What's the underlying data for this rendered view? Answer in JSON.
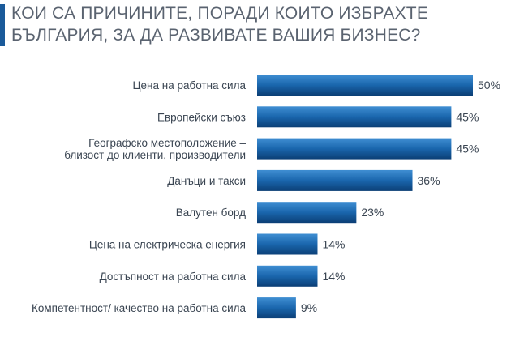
{
  "title": {
    "line1": "КОИ СА ПРИЧИНИТЕ, ПОРАДИ КОИТО ИЗБРАХТЕ",
    "line2": "БЪЛГАРИЯ, ЗА ДА РАЗВИВАТЕ ВАШИЯ БИЗНЕС?"
  },
  "colors": {
    "title_text": "#5a6370",
    "accent": "#1a5a9a",
    "bar_dark": "#0b3e75",
    "bar_mid": "#1a66ad",
    "bar_light": "#3f8ed2",
    "label_text": "#3a4552"
  },
  "chart_data": {
    "type": "bar",
    "orientation": "horizontal",
    "categories": [
      [
        "Цена на работна сила"
      ],
      [
        "Европейски съюз"
      ],
      [
        "Географско местоположение –",
        "близост до клиенти, производители"
      ],
      [
        "Данъци и такси"
      ],
      [
        "Валутен борд"
      ],
      [
        "Цена на електрическа енергия"
      ],
      [
        "Достъпност на работна сила"
      ],
      [
        "Компетентност/ качество на работна сила"
      ]
    ],
    "values": [
      50,
      45,
      45,
      36,
      23,
      14,
      14,
      9
    ],
    "value_labels": [
      "50%",
      "45%",
      "45%",
      "36%",
      "23%",
      "14%",
      "14%",
      "9%"
    ],
    "unit": "%",
    "grid": false,
    "legend": "none"
  }
}
